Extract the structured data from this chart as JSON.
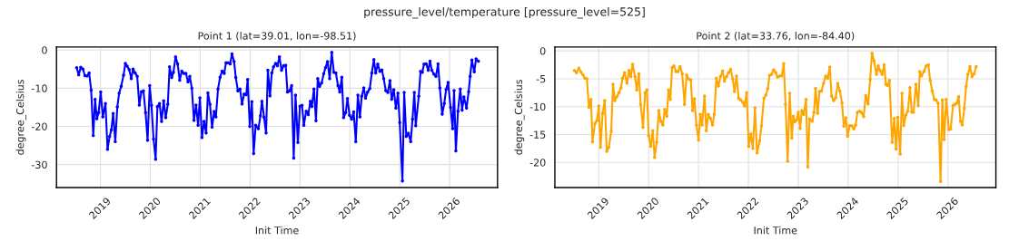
{
  "chart_data": [
    {
      "type": "line",
      "title": "Point 1 (lat=39.01, lon=-98.51)",
      "xlabel": "Init Time",
      "ylabel": "degree_Celsius",
      "annotations": [
        "pressure_level/temperature [pressure_level=525]"
      ],
      "grid": true,
      "marker": "circle",
      "line_style": "solid",
      "xlim": [
        2018.12,
        2026.96
      ],
      "xticks": [
        2019,
        2020,
        2021,
        2022,
        2023,
        2024,
        2025,
        2026
      ],
      "ylim": [
        -36,
        0.8
      ],
      "yticks": [
        0,
        -10,
        -20,
        -30
      ],
      "x": [
        2018.524,
        2018.565,
        2018.607,
        2018.649,
        2018.69,
        2018.732,
        2018.774,
        2018.815,
        2018.857,
        2018.893,
        2018.929,
        2018.964,
        2019.006,
        2019.048,
        2019.101,
        2019.143,
        2019.185,
        2019.22,
        2019.256,
        2019.298,
        2019.339,
        2019.375,
        2019.417,
        2019.464,
        2019.5,
        2019.536,
        2019.577,
        2019.619,
        2019.655,
        2019.696,
        2019.738,
        2019.78,
        2019.821,
        2019.863,
        2019.905,
        2019.946,
        2019.988,
        2020.024,
        2020.065,
        2020.107,
        2020.143,
        2020.185,
        2020.226,
        2020.268,
        2020.31,
        2020.351,
        2020.387,
        2020.429,
        2020.464,
        2020.506,
        2020.548,
        2020.589,
        2020.631,
        2020.673,
        2020.714,
        2020.756,
        2020.792,
        2020.833,
        2020.875,
        2020.917,
        2020.958,
        2020.994,
        2021.036,
        2021.077,
        2021.119,
        2021.155,
        2021.196,
        2021.238,
        2021.28,
        2021.315,
        2021.357,
        2021.399,
        2021.44,
        2021.482,
        2021.518,
        2021.56,
        2021.601,
        2021.637,
        2021.679,
        2021.714,
        2021.756,
        2021.798,
        2021.839,
        2021.881,
        2021.923,
        2021.952,
        2021.994,
        2022.036,
        2022.071,
        2022.113,
        2022.167,
        2022.208,
        2022.238,
        2022.28,
        2022.321,
        2022.357,
        2022.399,
        2022.435,
        2022.47,
        2022.512,
        2022.548,
        2022.589,
        2022.631,
        2022.673,
        2022.714,
        2022.75,
        2022.792,
        2022.833,
        2022.875,
        2022.911,
        2022.958,
        2023.0,
        2023.042,
        2023.077,
        2023.125,
        2023.167,
        2023.208,
        2023.238,
        2023.28,
        2023.321,
        2023.357,
        2023.393,
        2023.435,
        2023.476,
        2023.512,
        2023.554,
        2023.595,
        2023.637,
        2023.679,
        2023.72,
        2023.762,
        2023.798,
        2023.839,
        2023.875,
        2023.917,
        2023.952,
        2023.994,
        2024.036,
        2024.077,
        2024.119,
        2024.161,
        2024.202,
        2024.238,
        2024.28,
        2024.315,
        2024.357,
        2024.399,
        2024.44,
        2024.482,
        2024.518,
        2024.56,
        2024.601,
        2024.643,
        2024.679,
        2024.72,
        2024.762,
        2024.804,
        2024.839,
        2024.881,
        2024.923,
        2024.964,
        2025.0,
        2025.054,
        2025.089,
        2025.131,
        2025.173,
        2025.22,
        2025.256,
        2025.292,
        2025.321,
        2025.381,
        2025.417,
        2025.452,
        2025.488,
        2025.53,
        2025.571,
        2025.607,
        2025.643,
        2025.685,
        2025.726,
        2025.768,
        2025.804,
        2025.851,
        2025.893,
        2025.929,
        2025.97,
        2026.018,
        2026.06,
        2026.089,
        2026.125,
        2026.167,
        2026.214,
        2026.25,
        2026.286,
        2026.339,
        2026.381,
        2026.411,
        2026.446,
        2026.494,
        2026.53,
        2026.577
      ],
      "series": [
        {
          "color": "#0000ff",
          "values": [
            -4.6,
            -6.5,
            -4.5,
            -5.0,
            -6.7,
            -6.8,
            -6.0,
            -10.5,
            -22.4,
            -12.9,
            -18.0,
            -16.4,
            -11.0,
            -17.5,
            -14.0,
            -26.0,
            -22.6,
            -20.9,
            -16.6,
            -24.0,
            -14.9,
            -11.3,
            -9.5,
            -6.6,
            -3.5,
            -4.2,
            -5.1,
            -7.5,
            -5.0,
            -6.0,
            -6.9,
            -14.4,
            -10.9,
            -10.7,
            -16.4,
            -23.6,
            -9.3,
            -14.5,
            -23.3,
            -28.6,
            -14.8,
            -14.0,
            -18.7,
            -13.3,
            -17.7,
            -14.2,
            -4.4,
            -7.2,
            -5.8,
            -1.8,
            -3.6,
            -7.9,
            -5.5,
            -6.1,
            -6.1,
            -8.3,
            -6.9,
            -10.0,
            -18.4,
            -14.4,
            -19.7,
            -12.5,
            -22.9,
            -18.7,
            -21.7,
            -11.2,
            -14.2,
            -20.2,
            -16.1,
            -17.5,
            -10.2,
            -7.1,
            -5.5,
            -6.1,
            -3.3,
            -3.3,
            -3.6,
            -1.0,
            -3.0,
            -7.2,
            -10.7,
            -10.2,
            -14.1,
            -11.5,
            -11.7,
            -7.7,
            -20.0,
            -13.5,
            -27.1,
            -19.7,
            -20.6,
            -17.2,
            -13.4,
            -17.6,
            -21.7,
            -5.3,
            -12.0,
            -6.0,
            -4.4,
            -3.5,
            -4.1,
            -1.8,
            -5.3,
            -4.1,
            -4.0,
            -11.0,
            -10.7,
            -9.3,
            -28.3,
            -11.8,
            -24.2,
            -14.7,
            -14.5,
            -19.7,
            -16.0,
            -16.9,
            -13.4,
            -14.8,
            -10.2,
            -18.5,
            -7.5,
            -9.5,
            -8.6,
            -6.2,
            -4.6,
            -3.0,
            -7.5,
            -0.6,
            -5.8,
            -6.0,
            -9.3,
            -11.0,
            -7.1,
            -17.7,
            -16.4,
            -12.7,
            -17.1,
            -18.1,
            -16.2,
            -24.0,
            -11.8,
            -17.5,
            -12.1,
            -9.9,
            -12.6,
            -11.0,
            -10.1,
            -6.0,
            -2.5,
            -6.0,
            -3.7,
            -5.6,
            -5.2,
            -7.5,
            -10.6,
            -11.1,
            -8.0,
            -12.9,
            -10.4,
            -15.2,
            -11.3,
            -19.0,
            -34.3,
            -11.1,
            -22.6,
            -21.8,
            -24.0,
            -18.1,
            -11.1,
            -19.8,
            -12.1,
            -5.6,
            -5.8,
            -3.7,
            -3.6,
            -5.3,
            -2.9,
            -5.3,
            -6.3,
            -6.9,
            -3.6,
            -9.9,
            -16.8,
            -14.0,
            -10.3,
            -8.5,
            -15.0,
            -20.6,
            -10.6,
            -26.4,
            -16.0,
            -10.2,
            -15.7,
            -12.3,
            -15.2,
            -10.9,
            -6.9,
            -2.6,
            -5.7,
            -2.3,
            -2.9
          ]
        }
      ]
    },
    {
      "type": "line",
      "title": "Point 2 (lat=33.76, lon=-84.40)",
      "xlabel": "Init Time",
      "ylabel": "degree_Celsius",
      "grid": true,
      "marker": "circle",
      "line_style": "solid",
      "xlim": [
        2018.12,
        2026.96
      ],
      "xticks": [
        2019,
        2020,
        2021,
        2022,
        2023,
        2024,
        2025,
        2026
      ],
      "ylim": [
        -24.5,
        0.7
      ],
      "yticks": [
        0,
        -5,
        -10,
        -15,
        -20
      ],
      "x": [
        2018.512,
        2018.554,
        2018.601,
        2018.643,
        2018.685,
        2018.72,
        2018.762,
        2018.804,
        2018.845,
        2018.875,
        2018.923,
        2018.964,
        2019.0,
        2019.036,
        2019.077,
        2019.119,
        2019.161,
        2019.202,
        2019.25,
        2019.286,
        2019.321,
        2019.363,
        2019.405,
        2019.446,
        2019.476,
        2019.518,
        2019.565,
        2019.607,
        2019.643,
        2019.679,
        2019.726,
        2019.762,
        2019.804,
        2019.839,
        2019.887,
        2019.929,
        2019.964,
        2020.0,
        2020.042,
        2020.083,
        2020.119,
        2020.161,
        2020.202,
        2020.244,
        2020.286,
        2020.321,
        2020.363,
        2020.399,
        2020.435,
        2020.47,
        2020.506,
        2020.548,
        2020.589,
        2020.631,
        2020.673,
        2020.72,
        2020.762,
        2020.798,
        2020.845,
        2020.881,
        2020.917,
        2020.958,
        2021.0,
        2021.036,
        2021.071,
        2021.119,
        2021.155,
        2021.196,
        2021.238,
        2021.28,
        2021.315,
        2021.357,
        2021.399,
        2021.44,
        2021.482,
        2021.518,
        2021.56,
        2021.601,
        2021.643,
        2021.685,
        2021.72,
        2021.762,
        2021.804,
        2021.845,
        2021.887,
        2021.923,
        2021.964,
        2022.006,
        2022.048,
        2022.089,
        2022.131,
        2022.173,
        2022.226,
        2022.262,
        2022.31,
        2022.351,
        2022.387,
        2022.423,
        2022.464,
        2022.506,
        2022.548,
        2022.583,
        2022.625,
        2022.667,
        2022.708,
        2022.744,
        2022.786,
        2022.827,
        2022.869,
        2022.899,
        2022.929,
        2022.964,
        2023.0,
        2023.036,
        2023.071,
        2023.107,
        2023.155,
        2023.19,
        2023.226,
        2023.28,
        2023.315,
        2023.345,
        2023.387,
        2023.423,
        2023.464,
        2023.506,
        2023.548,
        2023.589,
        2023.631,
        2023.667,
        2023.708,
        2023.75,
        2023.792,
        2023.833,
        2023.875,
        2023.911,
        2023.952,
        2023.988,
        2024.03,
        2024.071,
        2024.113,
        2024.149,
        2024.185,
        2024.226,
        2024.262,
        2024.31,
        2024.351,
        2024.399,
        2024.44,
        2024.476,
        2024.518,
        2024.565,
        2024.601,
        2024.637,
        2024.679,
        2024.72,
        2024.756,
        2024.786,
        2024.827,
        2024.881,
        2024.923,
        2024.958,
        2024.994,
        2025.042,
        2025.077,
        2025.113,
        2025.155,
        2025.196,
        2025.238,
        2025.274,
        2025.31,
        2025.357,
        2025.405,
        2025.435,
        2025.47,
        2025.518,
        2025.56,
        2025.607,
        2025.643,
        2025.685,
        2025.726,
        2025.762,
        2025.804,
        2025.851,
        2025.887,
        2025.923,
        2025.964,
        2026.018,
        2026.054,
        2026.101,
        2026.137,
        2026.173,
        2026.214,
        2026.25,
        2026.286,
        2026.327,
        2026.363,
        2026.399,
        2026.44,
        2026.482,
        2026.524,
        2026.565
      ],
      "series": [
        {
          "color": "#ffa500",
          "values": [
            -3.5,
            -3.9,
            -3.1,
            -3.8,
            -4.3,
            -4.9,
            -5.0,
            -10.1,
            -8.7,
            -16.3,
            -13.0,
            -12.5,
            -9.9,
            -17.3,
            -11.2,
            -8.9,
            -18.0,
            -17.3,
            -14.4,
            -6.0,
            -8.9,
            -8.2,
            -7.5,
            -6.6,
            -4.9,
            -3.9,
            -5.8,
            -3.5,
            -4.6,
            -2.4,
            -4.6,
            -7.0,
            -4.1,
            -9.6,
            -13.7,
            -7.5,
            -7.0,
            -15.2,
            -17.1,
            -14.3,
            -19.1,
            -16.4,
            -10.7,
            -12.6,
            -13.3,
            -10.5,
            -11.7,
            -7.0,
            -8.7,
            -3.0,
            -2.7,
            -3.7,
            -3.7,
            -2.8,
            -4.1,
            -9.6,
            -4.3,
            -5.0,
            -5.2,
            -10.7,
            -8.6,
            -13.3,
            -16.0,
            -11.4,
            -13.3,
            -8.1,
            -14.3,
            -11.4,
            -12.1,
            -13.3,
            -11.4,
            -4.9,
            -6.3,
            -4.6,
            -3.6,
            -5.4,
            -4.6,
            -3.9,
            -3.3,
            -5.0,
            -7.3,
            -4.5,
            -8.5,
            -8.8,
            -9.2,
            -9.9,
            -7.5,
            -17.1,
            -14.9,
            -17.5,
            -10.2,
            -18.3,
            -16.1,
            -13.4,
            -8.5,
            -7.9,
            -6.8,
            -4.4,
            -4.2,
            -3.4,
            -3.9,
            -4.7,
            -4.5,
            -4.5,
            -2.3,
            -9.6,
            -19.8,
            -7.6,
            -15.6,
            -11.7,
            -12.7,
            -12.4,
            -11.0,
            -13.9,
            -10.7,
            -11.4,
            -8.7,
            -20.8,
            -12.2,
            -12.6,
            -11.0,
            -6.7,
            -11.2,
            -7.3,
            -7.2,
            -5.8,
            -4.5,
            -4.9,
            -2.9,
            -8.1,
            -8.9,
            -8.4,
            -5.8,
            -7.2,
            -9.3,
            -13.5,
            -12.0,
            -15.3,
            -13.4,
            -13.4,
            -14.0,
            -13.3,
            -11.0,
            -10.8,
            -11.0,
            -11.8,
            -8.0,
            -9.5,
            -5.1,
            -0.4,
            -1.8,
            -4.2,
            -2.7,
            -3.5,
            -4.2,
            -2.5,
            -6.0,
            -6.2,
            -5.3,
            -16.4,
            -12.1,
            -17.6,
            -11.9,
            -18.5,
            -7.6,
            -13.4,
            -11.5,
            -10.8,
            -6.6,
            -11.0,
            -11.0,
            -6.0,
            -9.8,
            -3.7,
            -4.5,
            -3.7,
            -2.7,
            -2.5,
            -5.3,
            -7.2,
            -8.7,
            -8.8,
            -9.4,
            -23.4,
            -8.8,
            -15.9,
            -8.7,
            -14.1,
            -14.0,
            -9.8,
            -9.6,
            -9.4,
            -8.2,
            -12.6,
            -13.3,
            -10.3,
            -6.4,
            -4.2,
            -2.8,
            -4.6,
            -4.1,
            -2.8
          ]
        }
      ]
    }
  ]
}
